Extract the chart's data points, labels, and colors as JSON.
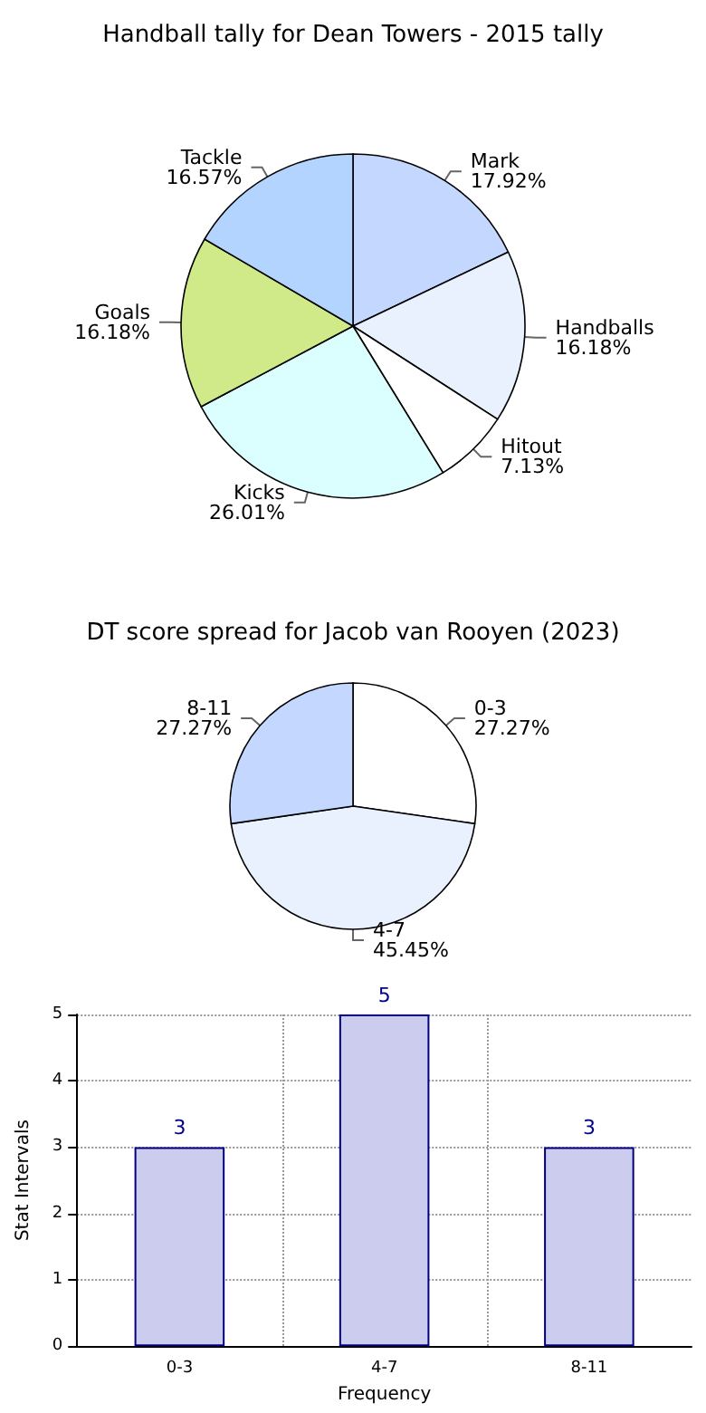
{
  "chart_data": [
    {
      "type": "pie",
      "title": "Handball tally for Dean Towers - 2015 tally",
      "categories": [
        "Mark",
        "Handballs",
        "Hitout",
        "Kicks",
        "Goals",
        "Tackle"
      ],
      "values": [
        17.92,
        16.18,
        7.13,
        26.01,
        16.18,
        16.57
      ],
      "value_labels": [
        "17.92%",
        "16.18%",
        "7.13%",
        "26.01%",
        "16.18%",
        "16.57%"
      ],
      "colors": [
        "#c4d8ff",
        "#eaf1fe",
        "#ffffff",
        "#dbffff",
        "#d0ea8a",
        "#b3d4ff"
      ],
      "legend": false
    },
    {
      "type": "pie",
      "title": "DT score spread for Jacob van Rooyen (2023)",
      "categories": [
        "0-3",
        "4-7",
        "8-11"
      ],
      "values": [
        27.27,
        45.45,
        27.27
      ],
      "value_labels": [
        "27.27%",
        "45.45%",
        "27.27%"
      ],
      "colors": [
        "#ffffff",
        "#eaf1fe",
        "#c4d8ff"
      ],
      "legend": false
    },
    {
      "type": "bar",
      "categories": [
        "0-3",
        "4-7",
        "8-11"
      ],
      "values": [
        3,
        5,
        3
      ],
      "color": "#ccccee",
      "xlabel": "Frequency",
      "ylabel": "Stat Intervals",
      "ylim": [
        0,
        5
      ],
      "yticks": [
        0,
        1,
        2,
        3,
        4,
        5
      ],
      "grid": true,
      "data_labels": true,
      "legend": false
    }
  ]
}
